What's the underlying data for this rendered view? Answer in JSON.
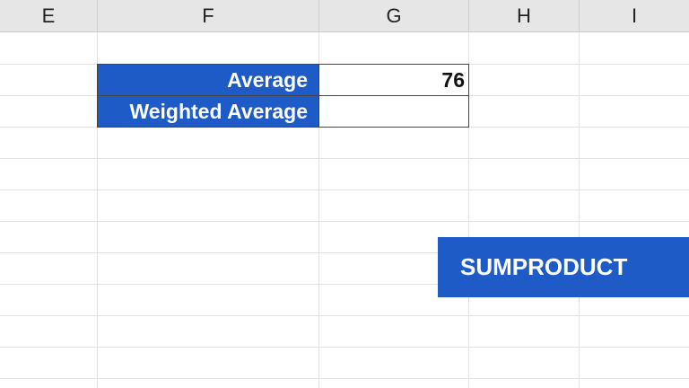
{
  "columns": [
    "E",
    "F",
    "G",
    "H",
    "I"
  ],
  "table": {
    "rows": [
      {
        "label": "Average",
        "value": "76"
      },
      {
        "label": "Weighted Average",
        "value": ""
      }
    ]
  },
  "banner": {
    "text": "SUMPRODUCT"
  },
  "colors": {
    "accent": "#1f5bc6",
    "header_bg": "#e6e6e6"
  }
}
